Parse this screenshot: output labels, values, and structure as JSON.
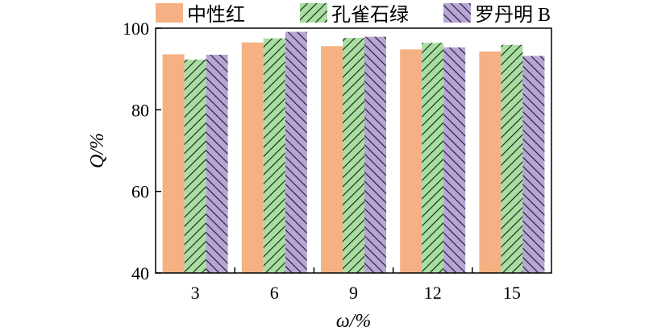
{
  "chart_data": {
    "type": "bar",
    "categories": [
      "3",
      "6",
      "9",
      "12",
      "15"
    ],
    "series": [
      {
        "name": "中性红",
        "values": [
          93.6,
          96.5,
          95.6,
          94.8,
          94.3
        ],
        "color": "#F5B183",
        "pattern": "none"
      },
      {
        "name": "孔雀石绿",
        "values": [
          92.3,
          97.5,
          97.6,
          96.4,
          95.9
        ],
        "color": "#A8DFA0",
        "pattern": "hatch"
      },
      {
        "name": "罗丹明 B",
        "values": [
          93.5,
          99.1,
          97.9,
          95.3,
          93.2
        ],
        "color": "#B7A5D8",
        "pattern": "hatch"
      }
    ],
    "xlabel": "ω/%",
    "ylabel": "Q/%",
    "ylim": [
      40,
      100
    ],
    "yticks": [
      40,
      60,
      80,
      100
    ],
    "grid": false,
    "legend_position": "top"
  }
}
